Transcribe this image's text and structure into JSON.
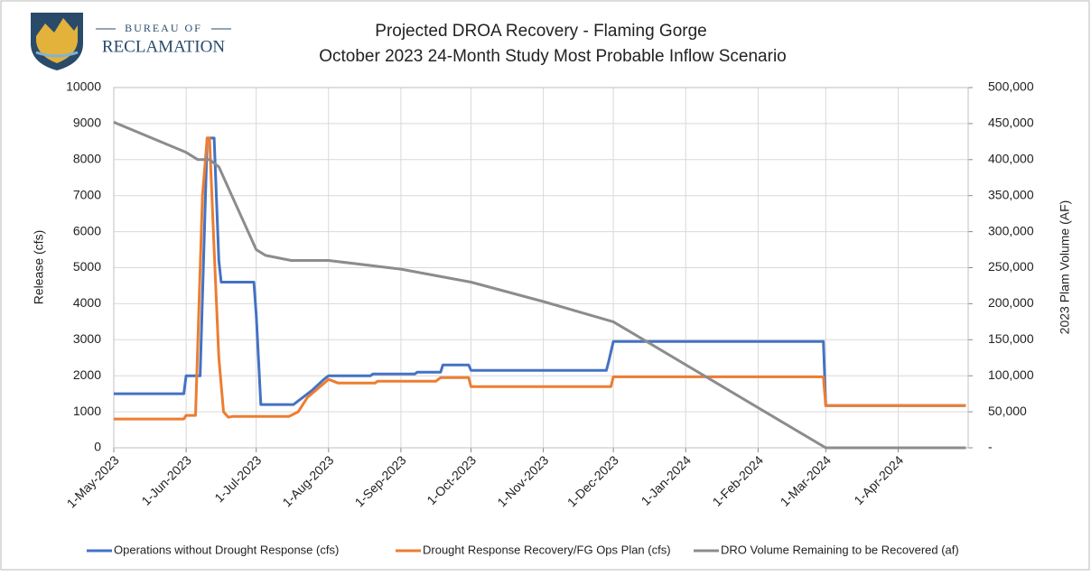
{
  "logo": {
    "line1": "BUREAU OF",
    "line2": "RECLAMATION"
  },
  "chart_data": {
    "type": "line",
    "title": "Projected DROA Recovery - Flaming Gorge",
    "subtitle": "October 2023 24-Month Study Most Probable Inflow Scenario",
    "y_label": "Release (cfs)",
    "y2_label": "2023 Plam Volume (AF)",
    "xlim": [
      "1-May-2023",
      "1-May-2024"
    ],
    "xticks": [
      "1-May-2023",
      "1-Jun-2023",
      "1-Jul-2023",
      "1-Aug-2023",
      "1-Sep-2023",
      "1-Oct-2023",
      "1-Nov-2023",
      "1-Dec-2023",
      "1-Jan-2024",
      "1-Feb-2024",
      "1-Mar-2024",
      "1-Apr-2024"
    ],
    "ylim": [
      0,
      10000
    ],
    "yticks": [
      0,
      1000,
      2000,
      3000,
      4000,
      5000,
      6000,
      7000,
      8000,
      9000,
      10000
    ],
    "y2lim": [
      0,
      500000
    ],
    "y2ticks": [
      {
        "value": 0,
        "label": "-"
      },
      {
        "value": 50000,
        "label": "50,000"
      },
      {
        "value": 100000,
        "label": "100,000"
      },
      {
        "value": 150000,
        "label": "150,000"
      },
      {
        "value": 200000,
        "label": "200,000"
      },
      {
        "value": 250000,
        "label": "250,000"
      },
      {
        "value": 300000,
        "label": "300,000"
      },
      {
        "value": 350000,
        "label": "350,000"
      },
      {
        "value": 400000,
        "label": "400,000"
      },
      {
        "value": 450000,
        "label": "450,000"
      },
      {
        "value": 500000,
        "label": "500,000"
      }
    ],
    "grid": true,
    "legend": "bottom",
    "series": [
      {
        "name": "Operations without Drought Response (cfs)",
        "color": "#4472c4",
        "x": [
          "1-May-2023",
          "31-May-2023",
          "1-Jun-2023",
          "7-Jun-2023",
          "10-Jun-2023",
          "13-Jun-2023",
          "15-Jun-2023",
          "16-Jun-2023",
          "30-Jun-2023",
          "1-Jul-2023",
          "3-Jul-2023",
          "17-Jul-2023",
          "25-Jul-2023",
          "30-Jul-2023",
          "1-Aug-2023",
          "19-Aug-2023",
          "20-Aug-2023",
          "7-Sep-2023",
          "8-Sep-2023",
          "18-Sep-2023",
          "19-Sep-2023",
          "30-Sep-2023",
          "1-Oct-2023",
          "28-Nov-2023",
          "29-Nov-2023",
          "1-Dec-2023",
          "29-Feb-2024",
          "1-Mar-2024",
          "30-Apr-2024"
        ],
        "values": [
          1500,
          1500,
          2000,
          2000,
          8600,
          8600,
          5200,
          4600,
          4600,
          3700,
          1200,
          1200,
          1600,
          1900,
          2000,
          2000,
          2050,
          2050,
          2100,
          2100,
          2300,
          2300,
          2150,
          2150,
          2400,
          2950,
          2950,
          1170,
          1170
        ]
      },
      {
        "name": "Drought Response Recovery/FG Ops Plan (cfs)",
        "color": "#ed7d31",
        "x": [
          "1-May-2023",
          "31-May-2023",
          "1-Jun-2023",
          "5-Jun-2023",
          "8-Jun-2023",
          "10-Jun-2023",
          "11-Jun-2023",
          "13-Jun-2023",
          "15-Jun-2023",
          "17-Jun-2023",
          "19-Jun-2023",
          "21-Jun-2023",
          "15-Jul-2023",
          "19-Jul-2023",
          "23-Jul-2023",
          "1-Aug-2023",
          "5-Aug-2023",
          "21-Aug-2023",
          "22-Aug-2023",
          "16-Sep-2023",
          "18-Sep-2023",
          "30-Sep-2023",
          "1-Oct-2023",
          "30-Nov-2023",
          "1-Dec-2023",
          "29-Feb-2024",
          "1-Mar-2024",
          "30-Apr-2024"
        ],
        "values": [
          800,
          800,
          900,
          900,
          7000,
          8600,
          8600,
          5500,
          2500,
          1000,
          850,
          870,
          870,
          1000,
          1400,
          1900,
          1800,
          1800,
          1850,
          1850,
          1950,
          1950,
          1700,
          1700,
          1970,
          1970,
          1170,
          1170
        ]
      },
      {
        "name": "DRO Volume Remaining to be Recovered (af)",
        "color": "#8c8c8c",
        "axis": "y2",
        "x": [
          "1-May-2023",
          "1-Jun-2023",
          "6-Jun-2023",
          "11-Jun-2023",
          "15-Jun-2023",
          "1-Jul-2023",
          "5-Jul-2023",
          "16-Jul-2023",
          "1-Aug-2023",
          "1-Sep-2023",
          "1-Oct-2023",
          "1-Nov-2023",
          "1-Dec-2023",
          "1-Mar-2024",
          "30-Apr-2024"
        ],
        "values": [
          452000,
          410000,
          400000,
          400000,
          390000,
          275000,
          267000,
          260000,
          260000,
          248000,
          230000,
          203000,
          175000,
          0,
          0
        ]
      }
    ]
  }
}
